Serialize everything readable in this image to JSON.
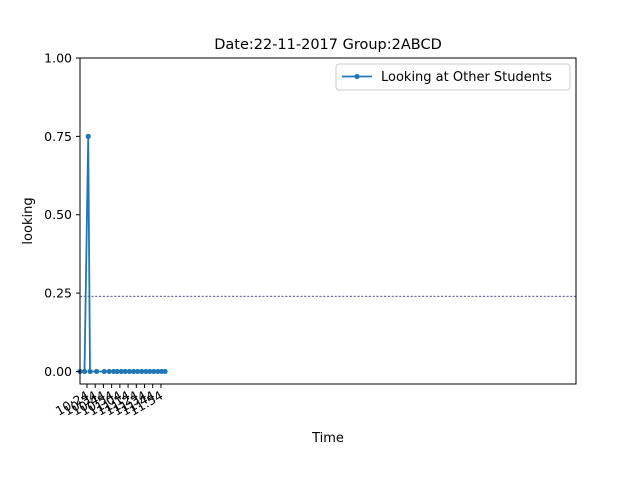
{
  "chart_data": {
    "type": "line",
    "title": "Date:22-11-2017  Group:2ABCD",
    "xlabel": "Time",
    "ylabel": "looking",
    "x_unit": "minutes since midnight",
    "xlim": [
      615.5,
      1219
    ],
    "ylim": [
      -0.04,
      1.0
    ],
    "x_tick_values": [
      624,
      634,
      644,
      654,
      664,
      674,
      684,
      694,
      704,
      714
    ],
    "x_tick_labels": [
      "10:24",
      "10:34",
      "10:44",
      "10:54",
      "11:04",
      "11:14",
      "11:24",
      "11:34",
      "11:44",
      "11:54"
    ],
    "y_ticks": [
      0.0,
      0.25,
      0.5,
      0.75,
      1.0
    ],
    "y_tick_labels": [
      "0.00",
      "0.25",
      "0.50",
      "0.75",
      "1.00"
    ],
    "reference_line": {
      "y": 0.24,
      "style": "dashed",
      "color": "#1a1a6e"
    },
    "legend": {
      "position": "top-right"
    },
    "series": [
      {
        "name": "Looking at Other Students",
        "color": "#1f77b4",
        "x": [
          615.5,
          621.0,
          625.5,
          627.7,
          635.7,
          645.0,
          651.0,
          656.4,
          660.6,
          665.7,
          670.4,
          675.7,
          680.8,
          685.7,
          690.7,
          695.7,
          700.4,
          705.3,
          710.3,
          714.9,
          719.0
        ],
        "y": [
          0,
          0,
          0.75,
          0,
          0,
          0,
          0,
          0,
          0,
          0,
          0,
          0,
          0,
          0,
          0,
          0,
          0,
          0,
          0,
          0,
          0
        ]
      }
    ]
  }
}
